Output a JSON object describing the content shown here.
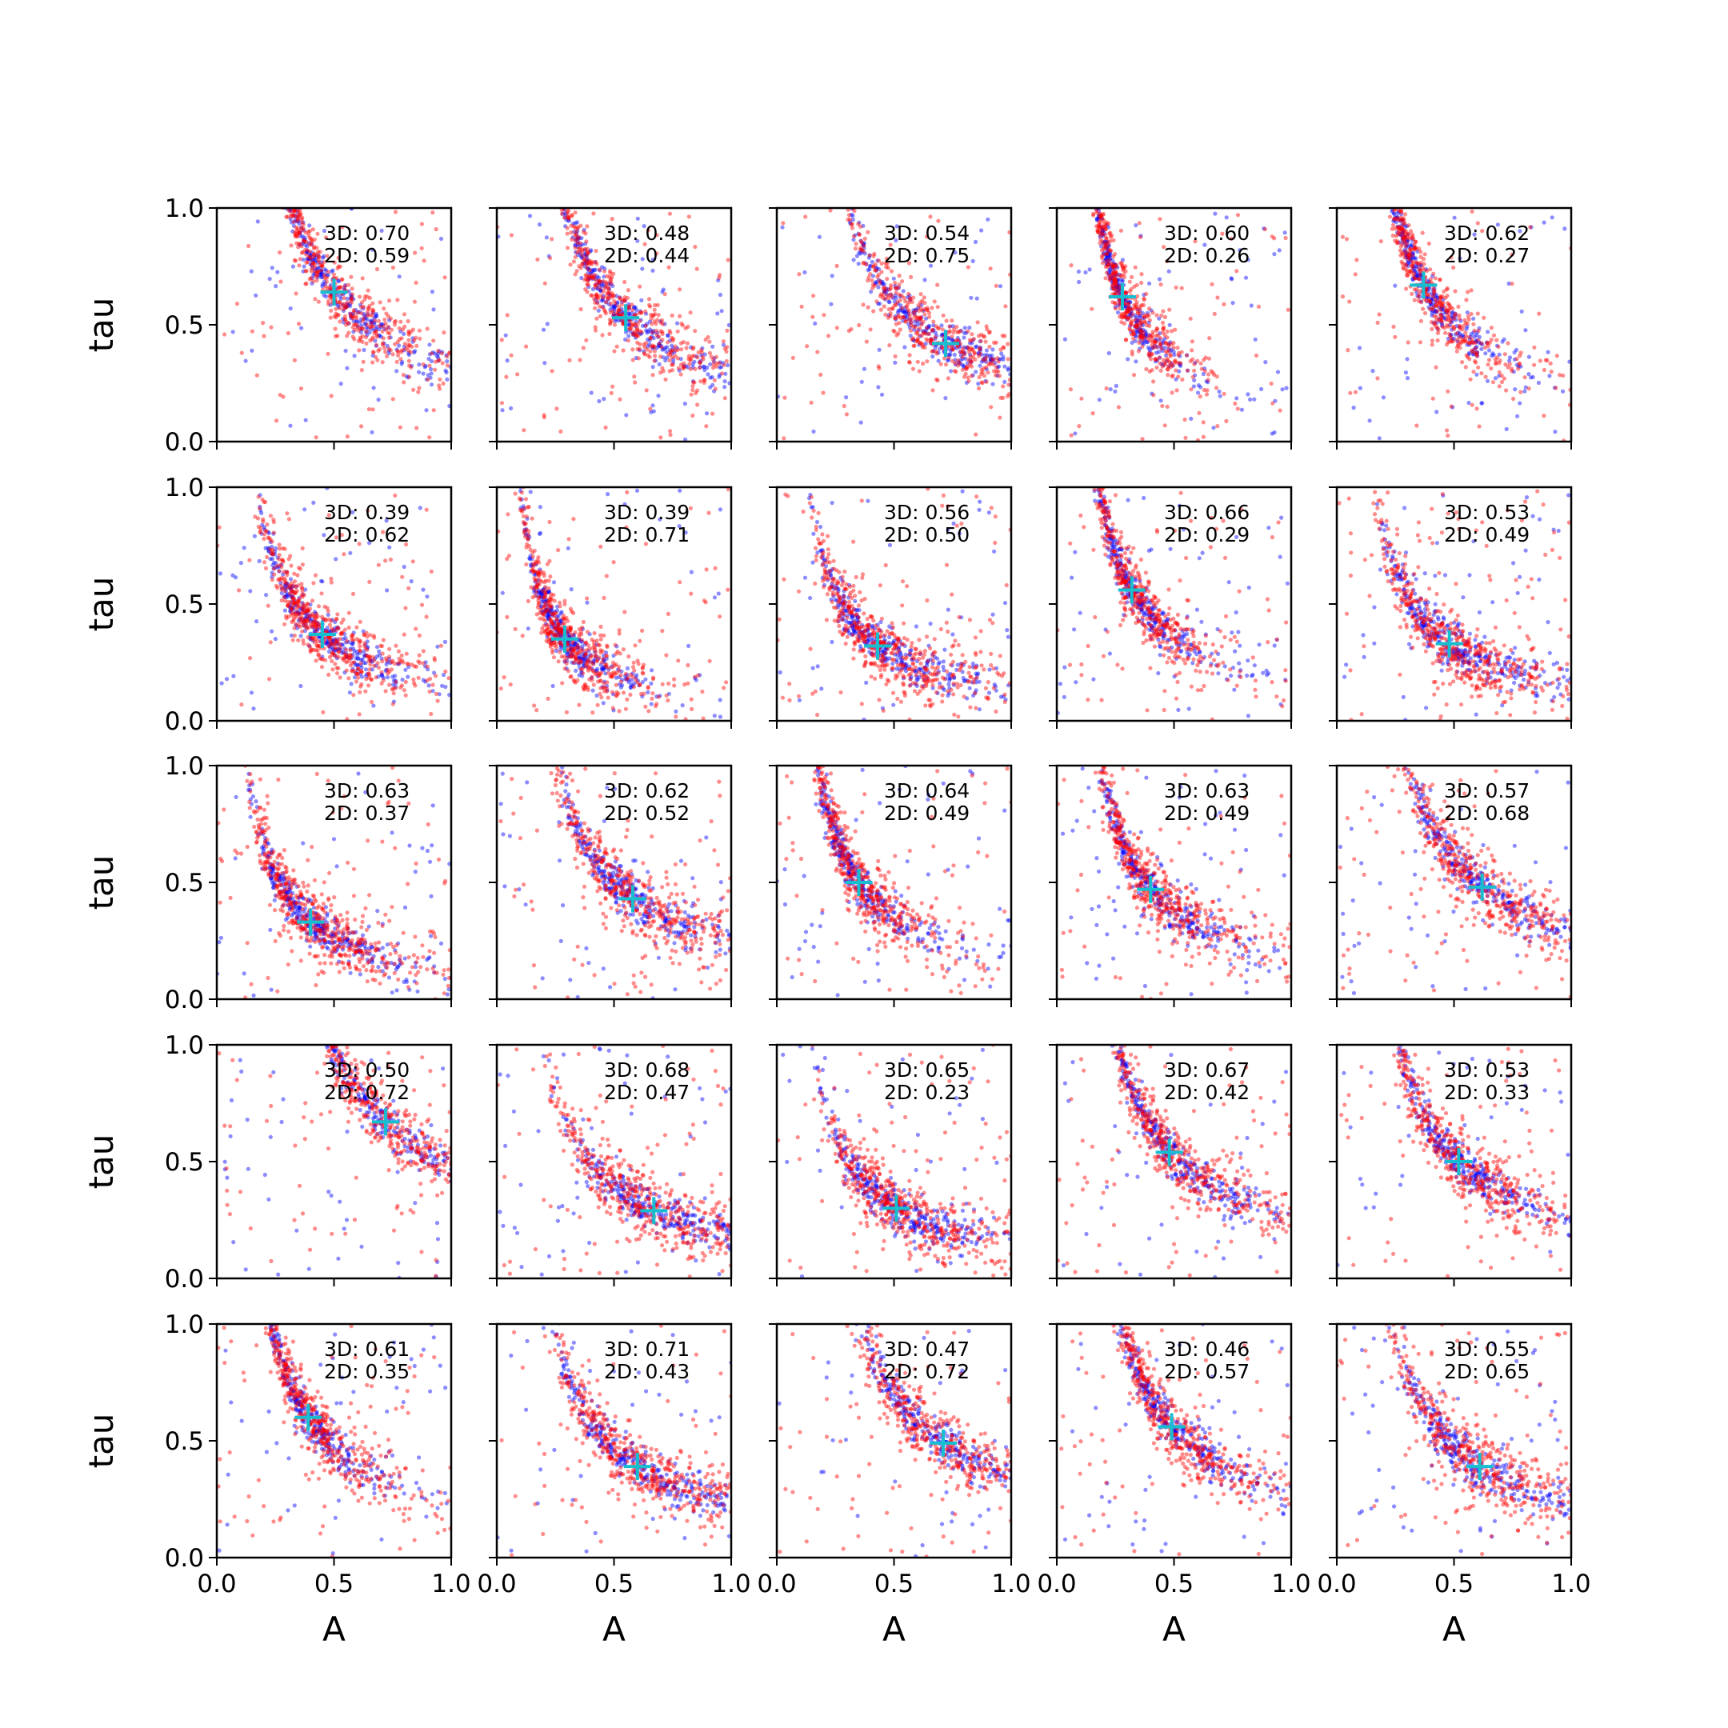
{
  "figure": {
    "rows": 5,
    "cols": 5,
    "xlabel": "A",
    "ylabel": "tau",
    "xlim": [
      0,
      1
    ],
    "ylim": [
      0,
      1
    ],
    "xticks": [
      "0.0",
      "0.5",
      "1.0"
    ],
    "yticks": [
      "0.0",
      "0.5",
      "1.0"
    ],
    "annotation_prefix_3d": "3D: ",
    "annotation_prefix_2d": "2D: ",
    "colors": {
      "series_3d": "#0000ff",
      "series_2d": "#ff0000",
      "marker": "#17becf"
    }
  },
  "chart_data": [
    {
      "type": "scatter",
      "row": 1,
      "col": 1,
      "score_3d": "0.70",
      "score_2d": "0.59",
      "marker": {
        "x": 0.5,
        "y": 0.64
      }
    },
    {
      "type": "scatter",
      "row": 1,
      "col": 2,
      "score_3d": "0.48",
      "score_2d": "0.44",
      "marker": {
        "x": 0.55,
        "y": 0.53
      }
    },
    {
      "type": "scatter",
      "row": 1,
      "col": 3,
      "score_3d": "0.54",
      "score_2d": "0.75",
      "marker": {
        "x": 0.72,
        "y": 0.42
      }
    },
    {
      "type": "scatter",
      "row": 1,
      "col": 4,
      "score_3d": "0.60",
      "score_2d": "0.26",
      "marker": {
        "x": 0.28,
        "y": 0.62
      }
    },
    {
      "type": "scatter",
      "row": 1,
      "col": 5,
      "score_3d": "0.62",
      "score_2d": "0.27",
      "marker": {
        "x": 0.37,
        "y": 0.67
      }
    },
    {
      "type": "scatter",
      "row": 2,
      "col": 1,
      "score_3d": "0.39",
      "score_2d": "0.62",
      "marker": {
        "x": 0.45,
        "y": 0.37
      }
    },
    {
      "type": "scatter",
      "row": 2,
      "col": 2,
      "score_3d": "0.39",
      "score_2d": "0.71",
      "marker": {
        "x": 0.29,
        "y": 0.35
      }
    },
    {
      "type": "scatter",
      "row": 2,
      "col": 3,
      "score_3d": "0.56",
      "score_2d": "0.50",
      "marker": {
        "x": 0.43,
        "y": 0.32
      }
    },
    {
      "type": "scatter",
      "row": 2,
      "col": 4,
      "score_3d": "0.66",
      "score_2d": "0.29",
      "marker": {
        "x": 0.32,
        "y": 0.56
      }
    },
    {
      "type": "scatter",
      "row": 2,
      "col": 5,
      "score_3d": "0.53",
      "score_2d": "0.49",
      "marker": {
        "x": 0.48,
        "y": 0.33
      }
    },
    {
      "type": "scatter",
      "row": 3,
      "col": 1,
      "score_3d": "0.63",
      "score_2d": "0.37",
      "marker": {
        "x": 0.4,
        "y": 0.33
      }
    },
    {
      "type": "scatter",
      "row": 3,
      "col": 2,
      "score_3d": "0.62",
      "score_2d": "0.52",
      "marker": {
        "x": 0.58,
        "y": 0.43
      }
    },
    {
      "type": "scatter",
      "row": 3,
      "col": 3,
      "score_3d": "0.64",
      "score_2d": "0.49",
      "marker": {
        "x": 0.35,
        "y": 0.5
      }
    },
    {
      "type": "scatter",
      "row": 3,
      "col": 4,
      "score_3d": "0.63",
      "score_2d": "0.49",
      "marker": {
        "x": 0.4,
        "y": 0.47
      }
    },
    {
      "type": "scatter",
      "row": 3,
      "col": 5,
      "score_3d": "0.57",
      "score_2d": "0.68",
      "marker": {
        "x": 0.62,
        "y": 0.48
      }
    },
    {
      "type": "scatter",
      "row": 4,
      "col": 1,
      "score_3d": "0.50",
      "score_2d": "0.72",
      "marker": {
        "x": 0.72,
        "y": 0.67
      }
    },
    {
      "type": "scatter",
      "row": 4,
      "col": 2,
      "score_3d": "0.68",
      "score_2d": "0.47",
      "marker": {
        "x": 0.67,
        "y": 0.29
      }
    },
    {
      "type": "scatter",
      "row": 4,
      "col": 3,
      "score_3d": "0.65",
      "score_2d": "0.23",
      "marker": {
        "x": 0.51,
        "y": 0.3
      }
    },
    {
      "type": "scatter",
      "row": 4,
      "col": 4,
      "score_3d": "0.67",
      "score_2d": "0.42",
      "marker": {
        "x": 0.48,
        "y": 0.54
      }
    },
    {
      "type": "scatter",
      "row": 4,
      "col": 5,
      "score_3d": "0.53",
      "score_2d": "0.33",
      "marker": {
        "x": 0.52,
        "y": 0.5
      }
    },
    {
      "type": "scatter",
      "row": 5,
      "col": 1,
      "score_3d": "0.61",
      "score_2d": "0.35",
      "marker": {
        "x": 0.39,
        "y": 0.6
      }
    },
    {
      "type": "scatter",
      "row": 5,
      "col": 2,
      "score_3d": "0.71",
      "score_2d": "0.43",
      "marker": {
        "x": 0.6,
        "y": 0.39
      }
    },
    {
      "type": "scatter",
      "row": 5,
      "col": 3,
      "score_3d": "0.47",
      "score_2d": "0.72",
      "marker": {
        "x": 0.71,
        "y": 0.49
      }
    },
    {
      "type": "scatter",
      "row": 5,
      "col": 4,
      "score_3d": "0.46",
      "score_2d": "0.57",
      "marker": {
        "x": 0.49,
        "y": 0.56
      }
    },
    {
      "type": "scatter",
      "row": 5,
      "col": 5,
      "score_3d": "0.55",
      "score_2d": "0.65",
      "marker": {
        "x": 0.61,
        "y": 0.39
      }
    }
  ]
}
